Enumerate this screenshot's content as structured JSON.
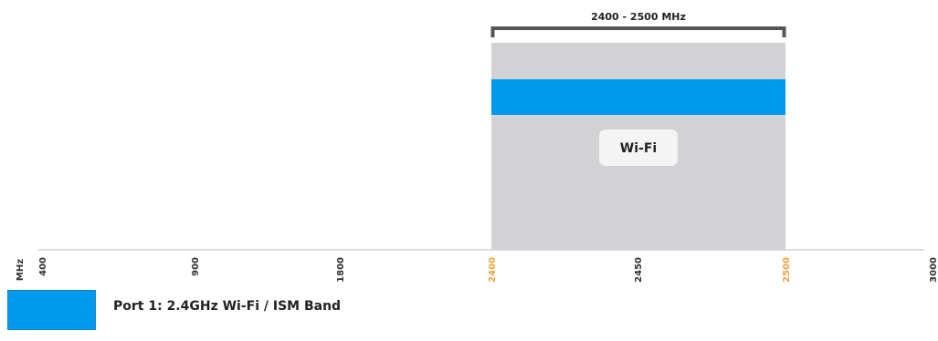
{
  "axis": {
    "unit": "MHz",
    "ticks": [
      {
        "label": "400",
        "highlight": false
      },
      {
        "label": "900",
        "highlight": false
      },
      {
        "label": "1800",
        "highlight": false
      },
      {
        "label": "2400",
        "highlight": true
      },
      {
        "label": "2450",
        "highlight": false
      },
      {
        "label": "2500",
        "highlight": true
      },
      {
        "label": "3000",
        "highlight": false
      }
    ],
    "tick_color": "#333333",
    "highlight_color": "#f2a33a",
    "line_color": "#bbbbbb"
  },
  "band": {
    "range_label": "2400 - 2500 MHz",
    "name": "Wi-Fi",
    "start_tick": "2400",
    "end_tick": "2500",
    "fill_color": "#d2d2d4",
    "stripe_color": "#0099ee",
    "bracket_color": "#555555"
  },
  "legend": {
    "label": "Port 1: 2.4GHz Wi-Fi / ISM Band",
    "swatch_color": "#0099ee"
  }
}
